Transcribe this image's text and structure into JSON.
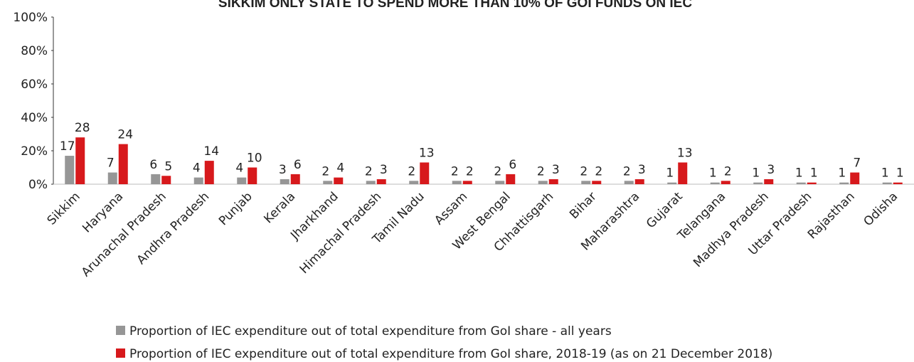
{
  "chart_data": {
    "type": "bar",
    "title": "SIKKIM ONLY STATE TO SPEND MORE THAN 10% OF GOI FUNDS ON IEC",
    "categories": [
      "Sikkim",
      "Haryana",
      "Arunachal Pradesh",
      "Andhra Pradesh",
      "Punjab",
      "Kerala",
      "Jharkhand",
      "Himachal Pradesh",
      "Tamil Nadu",
      "Assam",
      "West Bengal",
      "Chhattisgarh",
      "Bihar",
      "Maharashtra",
      "Gujarat",
      "Telangana",
      "Madhya Pradesh",
      "Uttar Pradesh",
      "Rajasthan",
      "Odisha"
    ],
    "series": [
      {
        "name": "Proportion of IEC expenditure out of total expenditure from GoI share - all years",
        "color": "#969696",
        "values": [
          17,
          7,
          6,
          4,
          4,
          3,
          2,
          2,
          2,
          2,
          2,
          2,
          2,
          2,
          1,
          1,
          1,
          1,
          1,
          1
        ]
      },
      {
        "name": "Proportion of IEC expenditure out of total expenditure from GoI share, 2018-19 (as on 21 December 2018)",
        "color": "#d7191c",
        "values": [
          28,
          24,
          5,
          14,
          10,
          6,
          4,
          3,
          13,
          2,
          6,
          3,
          2,
          3,
          13,
          2,
          3,
          1,
          7,
          1
        ]
      }
    ],
    "ylim": [
      0,
      100
    ],
    "yticks": [
      {
        "value": 0,
        "label": "0%"
      },
      {
        "value": 20,
        "label": "20%"
      },
      {
        "value": 40,
        "label": "40%"
      },
      {
        "value": 60,
        "label": "60%"
      },
      {
        "value": 80,
        "label": "80%"
      },
      {
        "value": 100,
        "label": "100%"
      }
    ],
    "grid": false,
    "legend": "bottom"
  }
}
